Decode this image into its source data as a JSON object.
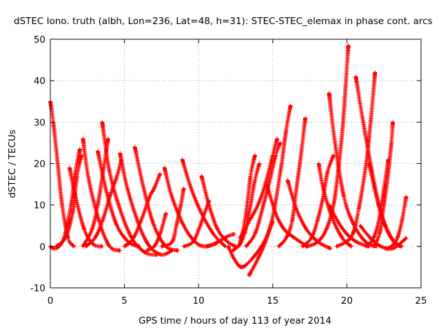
{
  "chart_data": {
    "type": "scatter",
    "title": "dSTEC Iono. truth (albh, Lon=236, Lat=48, h=31): STEC-STEC_elemax in phase cont. arcs",
    "xlabel": "GPS time / hours of day 113 of year 2014",
    "ylabel": "dSTEC  / TECUs",
    "xlim": [
      0,
      25
    ],
    "ylim": [
      -10,
      50
    ],
    "xticks": [
      0,
      5,
      10,
      15,
      20,
      25
    ],
    "yticks": [
      -10,
      0,
      10,
      20,
      30,
      40,
      50
    ],
    "grid": true,
    "marker": "+",
    "color": "#ff0000",
    "series": [
      {
        "points": [
          [
            0,
            35
          ],
          [
            0.2,
            30
          ],
          [
            0.5,
            20
          ],
          [
            0.8,
            10
          ],
          [
            1.2,
            2
          ],
          [
            1.6,
            0
          ]
        ]
      },
      {
        "points": [
          [
            0,
            0
          ],
          [
            0.2,
            -0.5
          ],
          [
            0.6,
            0
          ],
          [
            1,
            3
          ],
          [
            1.4,
            10
          ],
          [
            1.7,
            18
          ],
          [
            2,
            23.5
          ]
        ]
      },
      {
        "points": [
          [
            0.4,
            0
          ],
          [
            1,
            2
          ],
          [
            1.5,
            8
          ],
          [
            1.8,
            17
          ],
          [
            2.1,
            22
          ]
        ]
      },
      {
        "points": [
          [
            1.3,
            19
          ],
          [
            1.7,
            12
          ],
          [
            2.3,
            4
          ],
          [
            2.9,
            0.5
          ],
          [
            3.5,
            0
          ]
        ]
      },
      {
        "points": [
          [
            2.2,
            26
          ],
          [
            2.6,
            16
          ],
          [
            3.3,
            6
          ],
          [
            4,
            0
          ],
          [
            4.7,
            -1
          ]
        ]
      },
      {
        "points": [
          [
            2.4,
            0
          ],
          [
            3,
            2
          ],
          [
            3.5,
            6
          ],
          [
            4.1,
            13
          ],
          [
            4.5,
            17
          ],
          [
            4.8,
            21
          ]
        ]
      },
      {
        "points": [
          [
            2.2,
            0
          ],
          [
            2.8,
            4
          ],
          [
            3.2,
            10
          ],
          [
            3.6,
            19
          ],
          [
            3.9,
            26
          ]
        ]
      },
      {
        "points": [
          [
            3.2,
            23
          ],
          [
            3.8,
            13
          ],
          [
            4.5,
            5
          ],
          [
            5.3,
            1
          ],
          [
            6,
            0
          ]
        ]
      },
      {
        "points": [
          [
            3.5,
            30
          ],
          [
            4,
            18
          ],
          [
            4.7,
            9
          ],
          [
            5.5,
            2
          ],
          [
            6.4,
            -1.5
          ],
          [
            7.2,
            -2
          ]
        ]
      },
      {
        "points": [
          [
            4.7,
            22.5
          ],
          [
            5.2,
            14
          ],
          [
            6,
            5
          ],
          [
            6.7,
            0
          ],
          [
            7.5,
            -2
          ],
          [
            8.2,
            -1
          ]
        ]
      },
      {
        "points": [
          [
            5,
            0
          ],
          [
            5.6,
            2
          ],
          [
            6.2,
            7
          ],
          [
            6.7,
            12
          ],
          [
            7,
            14
          ],
          [
            7.4,
            17.5
          ]
        ]
      },
      {
        "points": [
          [
            5.7,
            24
          ],
          [
            6.3,
            14
          ],
          [
            7,
            5
          ],
          [
            7.8,
            0
          ],
          [
            8.6,
            -1
          ]
        ]
      },
      {
        "points": [
          [
            6.5,
            -1
          ],
          [
            7,
            0
          ],
          [
            7.4,
            3
          ],
          [
            7.8,
            8
          ]
        ]
      },
      {
        "points": [
          [
            7.7,
            19
          ],
          [
            8.2,
            12
          ],
          [
            9,
            5
          ],
          [
            9.8,
            1
          ],
          [
            10.5,
            0
          ],
          [
            11.3,
            1
          ]
        ]
      },
      {
        "points": [
          [
            7.5,
            0
          ],
          [
            8.2,
            1
          ],
          [
            8.5,
            5
          ],
          [
            8.8,
            10
          ],
          [
            9,
            14
          ]
        ]
      },
      {
        "points": [
          [
            8.9,
            21
          ],
          [
            9.5,
            14
          ],
          [
            10.2,
            8
          ],
          [
            11,
            3
          ],
          [
            11.8,
            0
          ]
        ]
      },
      {
        "points": [
          [
            9,
            0
          ],
          [
            9.6,
            1
          ],
          [
            10,
            4
          ],
          [
            10.4,
            8
          ],
          [
            10.7,
            11
          ]
        ]
      },
      {
        "points": [
          [
            10.2,
            17
          ],
          [
            10.7,
            10
          ],
          [
            11.3,
            4
          ],
          [
            12,
            1
          ],
          [
            12.5,
            0
          ]
        ]
      },
      {
        "points": [
          [
            10.5,
            0
          ],
          [
            11,
            0.5
          ],
          [
            11.5,
            1.5
          ],
          [
            12,
            2.5
          ],
          [
            12.4,
            3
          ]
        ]
      },
      {
        "points": [
          [
            12,
            0
          ],
          [
            12.4,
            -3
          ],
          [
            12.9,
            -5
          ],
          [
            13.6,
            -3
          ],
          [
            14.4,
            1
          ],
          [
            15,
            6
          ]
        ]
      },
      {
        "points": [
          [
            12.3,
            -1
          ],
          [
            12.8,
            1
          ],
          [
            13.2,
            8
          ],
          [
            13.5,
            17
          ],
          [
            13.8,
            22
          ]
        ]
      },
      {
        "points": [
          [
            12.7,
            0
          ],
          [
            13.1,
            3
          ],
          [
            13.5,
            10
          ],
          [
            13.8,
            16
          ],
          [
            14.1,
            20
          ]
        ]
      },
      {
        "points": [
          [
            13.4,
            -7
          ],
          [
            14,
            -3
          ],
          [
            14.6,
            2
          ],
          [
            15.1,
            9
          ],
          [
            15.6,
            20
          ],
          [
            15.9,
            28
          ],
          [
            16.2,
            34
          ]
        ]
      },
      {
        "points": [
          [
            13.2,
            0
          ],
          [
            13.8,
            3
          ],
          [
            14.3,
            9
          ],
          [
            14.8,
            16
          ],
          [
            15.2,
            22
          ],
          [
            15.5,
            25
          ]
        ]
      },
      {
        "points": [
          [
            12.8,
            2
          ],
          [
            13.4,
            6
          ],
          [
            14,
            10
          ],
          [
            14.5,
            15
          ],
          [
            15,
            22
          ],
          [
            15.3,
            26
          ]
        ]
      },
      {
        "points": [
          [
            14.6,
            15
          ],
          [
            15.2,
            8
          ],
          [
            15.8,
            4
          ],
          [
            16.5,
            2
          ],
          [
            17.3,
            0
          ]
        ]
      },
      {
        "points": [
          [
            15.4,
            0
          ],
          [
            15.9,
            2
          ],
          [
            16.3,
            6
          ],
          [
            16.6,
            14
          ],
          [
            16.9,
            22
          ],
          [
            17.2,
            31
          ]
        ]
      },
      {
        "points": [
          [
            16,
            16
          ],
          [
            16.6,
            9
          ],
          [
            17.3,
            4
          ],
          [
            18.1,
            1
          ],
          [
            18.9,
            -0.5
          ]
        ]
      },
      {
        "points": [
          [
            17,
            0
          ],
          [
            17.6,
            2
          ],
          [
            18,
            6
          ],
          [
            18.4,
            12
          ],
          [
            18.7,
            18
          ],
          [
            19.1,
            22
          ]
        ]
      },
      {
        "points": [
          [
            18.1,
            20
          ],
          [
            18.4,
            14
          ],
          [
            19,
            7
          ],
          [
            19.7,
            2
          ],
          [
            20.3,
            0
          ]
        ]
      },
      {
        "points": [
          [
            17.3,
            0
          ],
          [
            18,
            1
          ],
          [
            18.6,
            4
          ],
          [
            19.1,
            10
          ],
          [
            19.4,
            18
          ],
          [
            19.7,
            28
          ],
          [
            19.9,
            38
          ],
          [
            20.1,
            48.5
          ]
        ]
      },
      {
        "points": [
          [
            18.8,
            37
          ],
          [
            19.2,
            25
          ],
          [
            19.8,
            12
          ],
          [
            20.5,
            5
          ],
          [
            21.3,
            1
          ],
          [
            22,
            0
          ]
        ]
      },
      {
        "points": [
          [
            18.8,
            10
          ],
          [
            19.4,
            6
          ],
          [
            20,
            3
          ],
          [
            20.7,
            1
          ],
          [
            21.5,
            0
          ]
        ]
      },
      {
        "points": [
          [
            19.3,
            0
          ],
          [
            19.9,
            1
          ],
          [
            20.4,
            3
          ],
          [
            20.8,
            9
          ],
          [
            21.3,
            20
          ],
          [
            21.6,
            30
          ],
          [
            21.9,
            42
          ]
        ]
      },
      {
        "points": [
          [
            20.6,
            41
          ],
          [
            21.1,
            30
          ],
          [
            21.7,
            18
          ],
          [
            22.3,
            8
          ],
          [
            23,
            2
          ],
          [
            23.7,
            0
          ]
        ]
      },
      {
        "points": [
          [
            21.3,
            0
          ],
          [
            21.8,
            2
          ],
          [
            22.2,
            7
          ],
          [
            22.5,
            14
          ],
          [
            22.8,
            21
          ]
        ]
      },
      {
        "points": [
          [
            21.5,
            20
          ],
          [
            22,
            12
          ],
          [
            22.6,
            5
          ],
          [
            23.2,
            1
          ],
          [
            23.6,
            0
          ]
        ]
      },
      {
        "points": [
          [
            21.8,
            0
          ],
          [
            22.2,
            3
          ],
          [
            22.5,
            10
          ],
          [
            22.8,
            18
          ],
          [
            23,
            25
          ],
          [
            23.1,
            30
          ]
        ]
      },
      {
        "points": [
          [
            22.6,
            -0.5
          ],
          [
            23,
            0
          ],
          [
            23.4,
            2
          ],
          [
            23.7,
            6
          ],
          [
            24,
            12
          ]
        ]
      },
      {
        "points": [
          [
            20.9,
            5
          ],
          [
            21.6,
            2
          ],
          [
            22.3,
            0
          ],
          [
            23.1,
            -0.5
          ],
          [
            24,
            2
          ]
        ]
      }
    ]
  }
}
